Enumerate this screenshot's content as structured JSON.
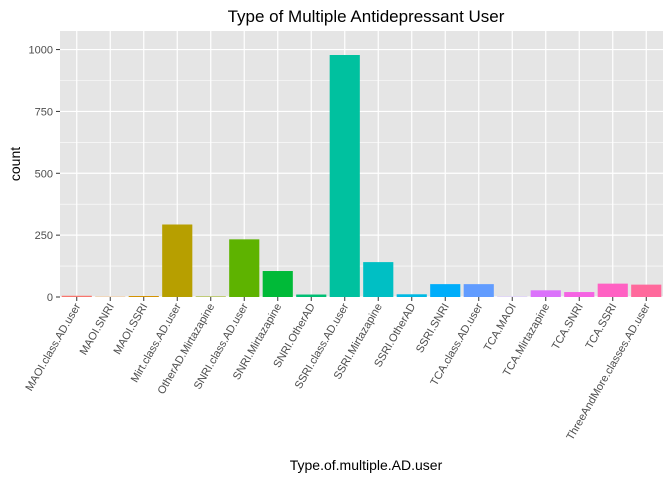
{
  "chart_data": {
    "type": "bar",
    "title": "Type of Multiple Antidepressant User",
    "xlabel": "Type.of.multiple.AD.user",
    "ylabel": "count",
    "ylim": [
      0,
      1075
    ],
    "yticks": [
      0,
      250,
      500,
      750,
      1000
    ],
    "ytick_labels": [
      "0",
      "250",
      "500",
      "750",
      "1000"
    ],
    "grid": true,
    "legend": "none",
    "categories": [
      "MAOI.class.AD.user",
      "MAOI.SNRI",
      "MAOI.SSRI",
      "Mirt.class.AD.user",
      "OtherAD.Mirtazapine",
      "SNRI.class.AD.user",
      "SNRI.Mirtazapine",
      "SNRI.OtherAD",
      "SSRI.class.AD.user",
      "SSRI.Mirtazapine",
      "SSRI.OtherAD",
      "SSRI.SNRI",
      "TCA.class.AD.user",
      "TCA.MAOI",
      "TCA.Mirtazapine",
      "TCA.SNRI",
      "TCA.SSRI",
      "ThreeAndMore.classes.AD.user"
    ],
    "values": [
      5,
      1,
      4,
      293,
      2,
      233,
      105,
      10,
      978,
      141,
      11,
      52,
      52,
      1,
      27,
      20,
      54,
      50
    ],
    "colors": [
      "#F8766D",
      "#E7861B",
      "#D39200",
      "#B79F00",
      "#93AA00",
      "#5EB300",
      "#00BA38",
      "#00BF74",
      "#00C19F",
      "#00BFC4",
      "#00B9E3",
      "#00ADFA",
      "#619CFF",
      "#AE87FF",
      "#DB72FB",
      "#F564E3",
      "#FF61C3",
      "#FF699C"
    ],
    "panel_background": "#E5E5E5",
    "grid_color": "#FFFFFF"
  }
}
